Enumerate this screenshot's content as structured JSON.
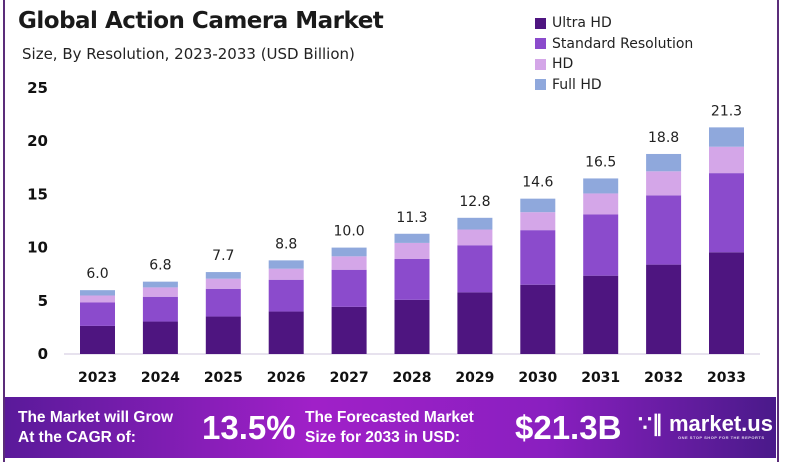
{
  "chart_data": {
    "type": "bar",
    "stacked": true,
    "title": "Global Action Camera Market",
    "subtitle": "Size, By Resolution, 2023-2033 (USD Billion)",
    "xlabel": "",
    "ylabel": "",
    "ylim": [
      0,
      25
    ],
    "yticks": [
      0,
      5,
      10,
      15,
      20,
      25
    ],
    "grid": false,
    "legend_position": "top-right",
    "categories": [
      "2023",
      "2024",
      "2025",
      "2026",
      "2027",
      "2028",
      "2029",
      "2030",
      "2031",
      "2032",
      "2033"
    ],
    "totals": [
      "6.0",
      "6.8",
      "7.7",
      "8.8",
      "10.0",
      "11.3",
      "12.8",
      "14.6",
      "16.5",
      "18.8",
      "21.3"
    ],
    "series": [
      {
        "name": "Ultra HD",
        "color": "#4e1580",
        "values": [
          2.64,
          3.05,
          3.52,
          3.99,
          4.43,
          5.09,
          5.79,
          6.51,
          7.36,
          8.4,
          9.56
        ]
      },
      {
        "name": "Standard Resolution",
        "color": "#8b4bcc",
        "values": [
          2.2,
          2.33,
          2.61,
          2.99,
          3.49,
          3.84,
          4.43,
          5.13,
          5.75,
          6.51,
          7.44
        ]
      },
      {
        "name": "HD",
        "color": "#d4a6e8",
        "values": [
          0.66,
          0.88,
          0.95,
          1.04,
          1.26,
          1.51,
          1.48,
          1.69,
          1.98,
          2.26,
          2.48
        ]
      },
      {
        "name": "Full HD",
        "color": "#8fa8dc",
        "values": [
          0.5,
          0.54,
          0.62,
          0.78,
          0.82,
          0.86,
          1.1,
          1.27,
          1.41,
          1.63,
          1.82
        ]
      }
    ]
  },
  "banner": {
    "cagr_label_line1": "The Market will Grow",
    "cagr_label_line2": "At the CAGR of:",
    "cagr_value": "13.5%",
    "forecast_label_line1": "The Forecasted Market",
    "forecast_label_line2": "Size for 2033 in USD:",
    "forecast_value": "$21.3B",
    "logo_name": "market.us",
    "logo_tagline": "ONE STOP SHOP FOR THE REPORTS"
  }
}
